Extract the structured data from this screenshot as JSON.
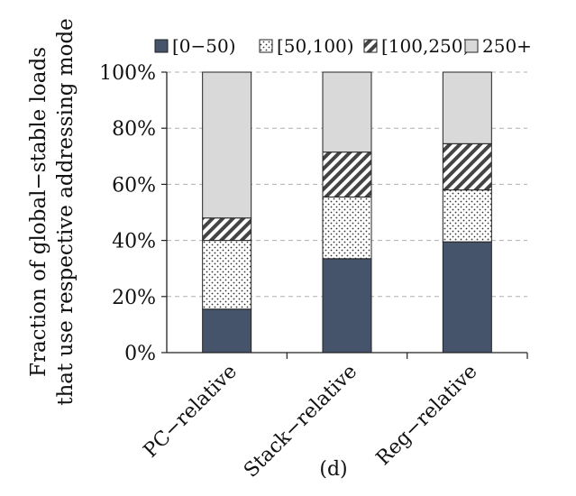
{
  "chart_data": {
    "type": "bar",
    "stacked": true,
    "categories": [
      "PC−relative",
      "Stack−relative",
      "Reg−relative"
    ],
    "series": [
      {
        "name": "[0−50)",
        "values": [
          15.5,
          33.5,
          39.5
        ],
        "color": "#46546b",
        "pattern": "solid"
      },
      {
        "name": "[50,100)",
        "values": [
          24.5,
          22.0,
          18.5
        ],
        "color": "#ffffff",
        "pattern": "dots"
      },
      {
        "name": "[100,250)",
        "values": [
          8.0,
          16.0,
          16.5
        ],
        "color": "#ffffff",
        "pattern": "diagonal-stripes"
      },
      {
        "name": "250+",
        "values": [
          52.0,
          28.5,
          25.5
        ],
        "color": "#d9d9d9",
        "pattern": "solid"
      }
    ],
    "ylabel_lines": [
      "Fraction of global−stable loads",
      "that use respective addressing mode"
    ],
    "yticks": [
      "0%",
      "20%",
      "40%",
      "60%",
      "80%",
      "100%"
    ],
    "ylim": [
      0,
      100
    ],
    "grid": true,
    "legend": "top",
    "caption": "(d)"
  }
}
